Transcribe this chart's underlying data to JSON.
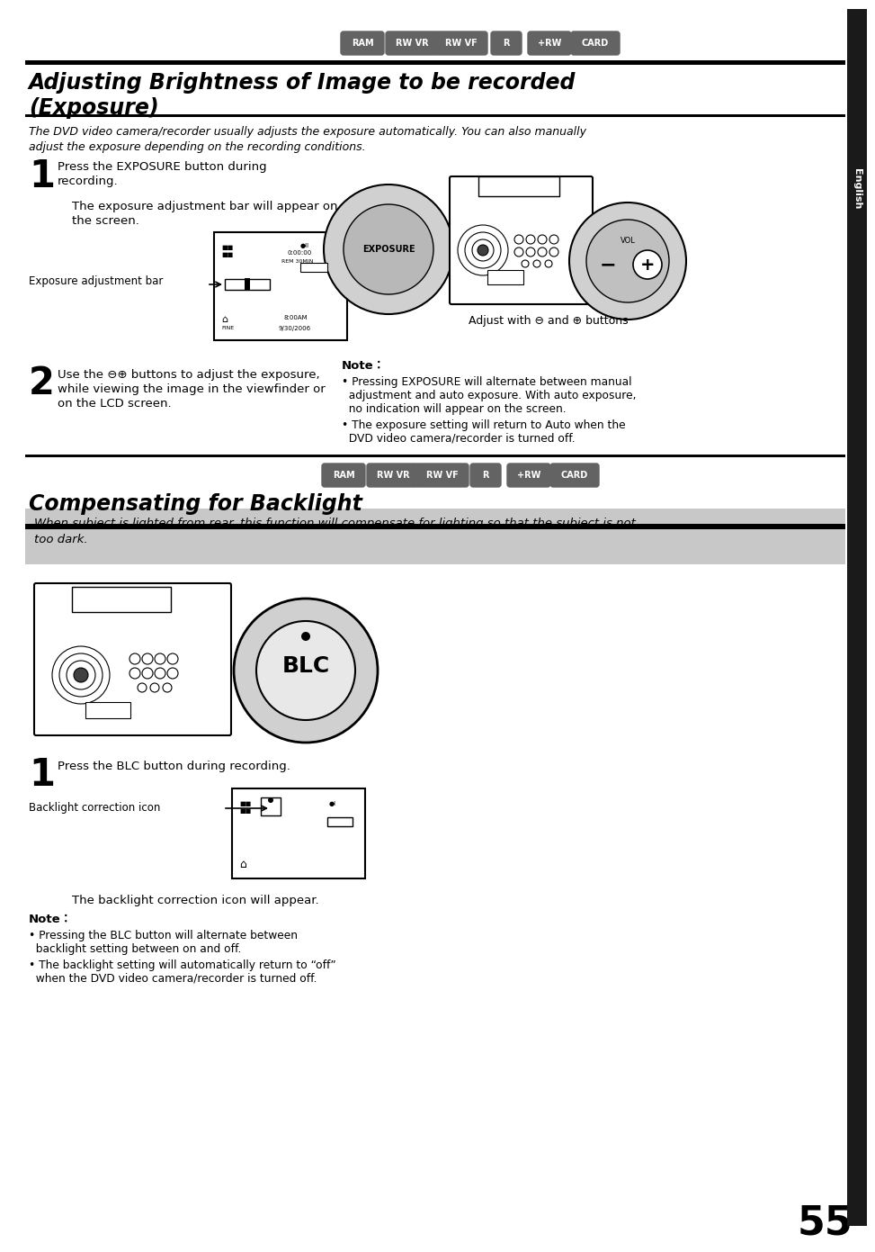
{
  "page_number": "55",
  "bg_color": "#ffffff",
  "sidebar_color": "#1a1a1a",
  "sidebar_text": "English",
  "top_badges": [
    "RAM",
    "RW VR",
    "RW VF",
    "R",
    "+RW",
    "CARD"
  ],
  "badge_color": "#636363",
  "badge_text_color": "#ffffff",
  "section1_title_line1": "Adjusting Brightness of Image to be recorded",
  "section1_title_line2": "(Exposure)",
  "section1_intro_line1": "The DVD video camera/recorder usually adjusts the exposure automatically. You can also manually",
  "section1_intro_line2": "adjust the exposure depending on the recording conditions.",
  "step1_number": "1",
  "step1_text_line1": "Press the EXPOSURE button during",
  "step1_text_line2": "recording.",
  "step1_subtext_line1": "The exposure adjustment bar will appear on",
  "step1_subtext_line2": "the screen.",
  "exposure_bar_label": "Exposure adjustment bar",
  "adjust_text": "Adjust with ⊖ and ⊕ buttons",
  "step2_number": "2",
  "step2_text_line1": "Use the ⊖⊕ buttons to adjust the exposure,",
  "step2_text_line2": "while viewing the image in the viewfinder or",
  "step2_text_line3": "on the LCD screen.",
  "note1_title": "Note：",
  "note1_bullet1_line1": "• Pressing EXPOSURE will alternate between manual",
  "note1_bullet1_line2": "  adjustment and auto exposure. With auto exposure,",
  "note1_bullet1_line3": "  no indication will appear on the screen.",
  "note1_bullet2_line1": "• The exposure setting will return to Auto when the",
  "note1_bullet2_line2": "  DVD video camera/recorder is turned off.",
  "mid_badges": [
    "RAM",
    "RW VR",
    "RW VF",
    "R",
    "+RW",
    "CARD"
  ],
  "section2_title": "Compensating for Backlight",
  "section2_intro_line1": "When subject is lighted from rear, this function will compensate for lighting so that the subject is not",
  "section2_intro_line2": "too dark.",
  "section2_intro_bg": "#c8c8c8",
  "blc_step1_number": "1",
  "blc_step1_text": "Press the BLC button during recording.",
  "blc_correction_label": "Backlight correction icon",
  "blc_appear_text": "The backlight correction icon will appear.",
  "note2_title": "Note：",
  "note2_bullet1_line1": "• Pressing the BLC button will alternate between",
  "note2_bullet1_line2": "  backlight setting between on and off.",
  "note2_bullet2_line1": "• The backlight setting will automatically return to “off”",
  "note2_bullet2_line2": "  when the DVD video camera/recorder is turned off."
}
